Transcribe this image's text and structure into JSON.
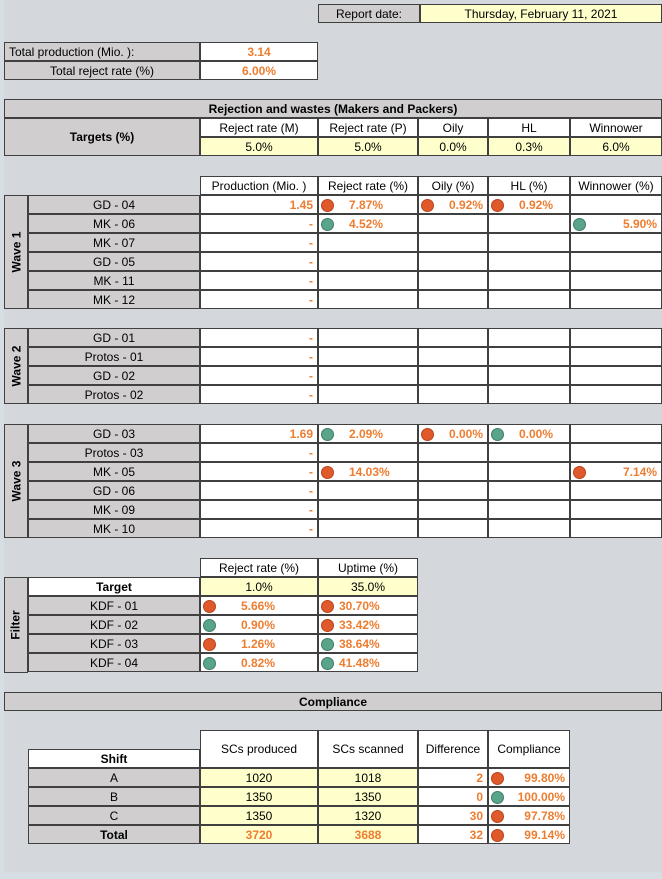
{
  "header": {
    "report_date_label": "Report date:",
    "report_date_value": "Thursday, February 11, 2021"
  },
  "summary": {
    "total_production_label": "Total production (Mio. ):",
    "total_production_value": "3.14",
    "total_reject_label": "Total reject rate (%)",
    "total_reject_value": "6.00%"
  },
  "rejection": {
    "title": "Rejection and wastes (Makers and Packers)",
    "targets_label": "Targets (%)",
    "target_headers": [
      "Reject rate (M)",
      "Reject rate (P)",
      "Oily",
      "HL",
      "Winnower"
    ],
    "target_values": [
      "5.0%",
      "5.0%",
      "0.0%",
      "0.3%",
      "6.0%"
    ],
    "col_headers": [
      "Production (Mio. )",
      "Reject rate (%)",
      "Oily (%)",
      "HL (%)",
      "Winnower (%)"
    ],
    "waves": [
      {
        "label": "Wave 1",
        "rows": [
          {
            "name": "GD - 04",
            "production": "1.45",
            "reject": "7.87%",
            "reject_status": "red",
            "oily": "0.92%",
            "oily_status": "red",
            "hl": "0.92%",
            "hl_status": "red",
            "winnower": "",
            "winnower_status": ""
          },
          {
            "name": "MK - 06",
            "production": "-",
            "reject": "4.52%",
            "reject_status": "green",
            "oily": "",
            "oily_status": "",
            "hl": "",
            "hl_status": "",
            "winnower": "5.90%",
            "winnower_status": "green"
          },
          {
            "name": "MK - 07",
            "production": "-",
            "reject": "",
            "reject_status": "",
            "oily": "",
            "oily_status": "",
            "hl": "",
            "hl_status": "",
            "winnower": "",
            "winnower_status": ""
          },
          {
            "name": "GD - 05",
            "production": "-",
            "reject": "",
            "reject_status": "",
            "oily": "",
            "oily_status": "",
            "hl": "",
            "hl_status": "",
            "winnower": "",
            "winnower_status": ""
          },
          {
            "name": "MK - 11",
            "production": "-",
            "reject": "",
            "reject_status": "",
            "oily": "",
            "oily_status": "",
            "hl": "",
            "hl_status": "",
            "winnower": "",
            "winnower_status": ""
          },
          {
            "name": "MK - 12",
            "production": "-",
            "reject": "",
            "reject_status": "",
            "oily": "",
            "oily_status": "",
            "hl": "",
            "hl_status": "",
            "winnower": "",
            "winnower_status": ""
          }
        ]
      },
      {
        "label": "Wave 2",
        "rows": [
          {
            "name": "GD - 01",
            "production": "-",
            "reject": "",
            "reject_status": "",
            "oily": "",
            "oily_status": "",
            "hl": "",
            "hl_status": "",
            "winnower": "",
            "winnower_status": ""
          },
          {
            "name": "Protos - 01",
            "production": "-",
            "reject": "",
            "reject_status": "",
            "oily": "",
            "oily_status": "",
            "hl": "",
            "hl_status": "",
            "winnower": "",
            "winnower_status": ""
          },
          {
            "name": "GD - 02",
            "production": "-",
            "reject": "",
            "reject_status": "",
            "oily": "",
            "oily_status": "",
            "hl": "",
            "hl_status": "",
            "winnower": "",
            "winnower_status": ""
          },
          {
            "name": "Protos - 02",
            "production": "-",
            "reject": "",
            "reject_status": "",
            "oily": "",
            "oily_status": "",
            "hl": "",
            "hl_status": "",
            "winnower": "",
            "winnower_status": ""
          }
        ]
      },
      {
        "label": "Wave 3",
        "rows": [
          {
            "name": "GD - 03",
            "production": "1.69",
            "reject": "2.09%",
            "reject_status": "green",
            "oily": "0.00%",
            "oily_status": "red",
            "hl": "0.00%",
            "hl_status": "green",
            "winnower": "",
            "winnower_status": ""
          },
          {
            "name": "Protos - 03",
            "production": "-",
            "reject": "",
            "reject_status": "",
            "oily": "",
            "oily_status": "",
            "hl": "",
            "hl_status": "",
            "winnower": "",
            "winnower_status": ""
          },
          {
            "name": "MK - 05",
            "production": "-",
            "reject": "14.03%",
            "reject_status": "red",
            "oily": "",
            "oily_status": "",
            "hl": "",
            "hl_status": "",
            "winnower": "7.14%",
            "winnower_status": "red"
          },
          {
            "name": "GD - 06",
            "production": "-",
            "reject": "",
            "reject_status": "",
            "oily": "",
            "oily_status": "",
            "hl": "",
            "hl_status": "",
            "winnower": "",
            "winnower_status": ""
          },
          {
            "name": "MK - 09",
            "production": "-",
            "reject": "",
            "reject_status": "",
            "oily": "",
            "oily_status": "",
            "hl": "",
            "hl_status": "",
            "winnower": "",
            "winnower_status": ""
          },
          {
            "name": "MK - 10",
            "production": "-",
            "reject": "",
            "reject_status": "",
            "oily": "",
            "oily_status": "",
            "hl": "",
            "hl_status": "",
            "winnower": "",
            "winnower_status": ""
          }
        ]
      }
    ]
  },
  "filter": {
    "label": "Filter",
    "col_headers": [
      "Reject rate (%)",
      "Uptime (%)"
    ],
    "target_label": "Target",
    "target_values": [
      "1.0%",
      "35.0%"
    ],
    "rows": [
      {
        "name": "KDF - 01",
        "reject": "5.66%",
        "reject_status": "red",
        "uptime": "30.70%",
        "uptime_status": "red"
      },
      {
        "name": "KDF - 02",
        "reject": "0.90%",
        "reject_status": "green",
        "uptime": "33.42%",
        "uptime_status": "red"
      },
      {
        "name": "KDF - 03",
        "reject": "1.26%",
        "reject_status": "red",
        "uptime": "38.64%",
        "uptime_status": "green"
      },
      {
        "name": "KDF - 04",
        "reject": "0.82%",
        "reject_status": "green",
        "uptime": "41.48%",
        "uptime_status": "green"
      }
    ]
  },
  "compliance": {
    "title": "Compliance",
    "col_headers": [
      "Shift",
      "SCs produced",
      "SCs scanned",
      "Difference",
      "Compliance"
    ],
    "rows": [
      {
        "shift": "A",
        "produced": "1020",
        "scanned": "1018",
        "difference": "2",
        "compliance": "99.80%",
        "status": "red"
      },
      {
        "shift": "B",
        "produced": "1350",
        "scanned": "1350",
        "difference": "0",
        "compliance": "100.00%",
        "status": "green"
      },
      {
        "shift": "C",
        "produced": "1350",
        "scanned": "1320",
        "difference": "30",
        "compliance": "97.78%",
        "status": "red"
      }
    ],
    "total": {
      "shift": "Total",
      "produced": "3720",
      "scanned": "3688",
      "difference": "32",
      "compliance": "99.14%",
      "status": "red"
    }
  },
  "colors": {
    "accent_orange": "#ed7d31",
    "status_red": "#e0592a",
    "status_green": "#5aa48a",
    "input_yellow": "#ffffcc",
    "header_grey": "#d0cece"
  }
}
